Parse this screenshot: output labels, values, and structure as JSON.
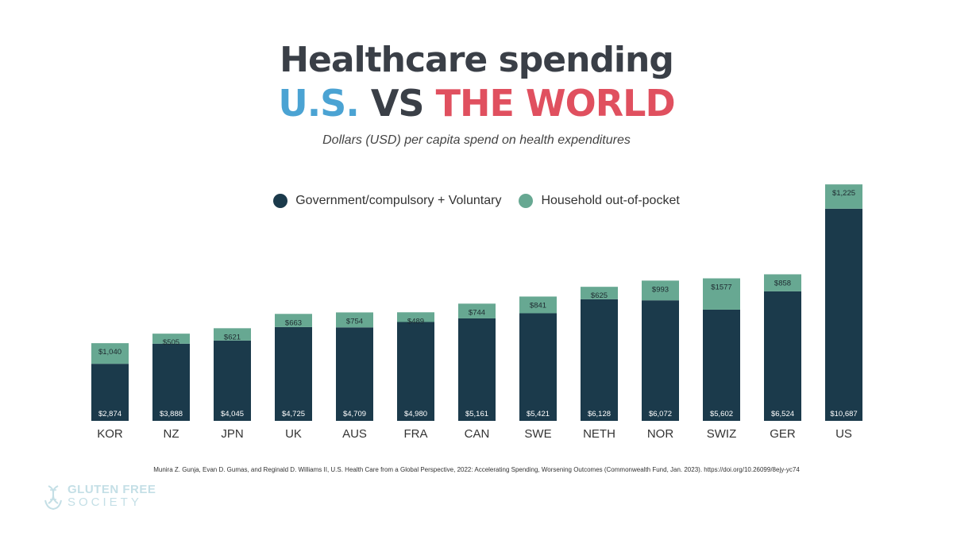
{
  "header": {
    "title_line1": "Healthcare spending",
    "title_us": "U.S.",
    "title_vs": "VS",
    "title_world": "THE WORLD",
    "subtitle": "Dollars (USD) per capita spend on health expenditures"
  },
  "legend": {
    "items": [
      {
        "label": "Government/compulsory + Voluntary",
        "color": "#1b3a4b"
      },
      {
        "label": "Household out-of-pocket",
        "color": "#67a892"
      }
    ]
  },
  "colors": {
    "title_dark": "#3a3f47",
    "us_blue": "#4ba3d3",
    "world_red": "#e0505f",
    "bar_dark": "#1b3a4b",
    "bar_green": "#67a892"
  },
  "chart_data": {
    "type": "bar",
    "stacked": true,
    "categories": [
      "KOR",
      "NZ",
      "JPN",
      "UK",
      "AUS",
      "FRA",
      "CAN",
      "SWE",
      "NETH",
      "NOR",
      "SWIZ",
      "GER",
      "US"
    ],
    "series": [
      {
        "name": "Government/compulsory + Voluntary",
        "values": [
          2874,
          3888,
          4045,
          4725,
          4709,
          4980,
          5161,
          5421,
          6128,
          6072,
          5602,
          6524,
          10687
        ],
        "labels": [
          "$2,874",
          "$3,888",
          "$4,045",
          "$4,725",
          "$4,709",
          "$4,980",
          "$5,161",
          "$5,421",
          "$6,128",
          "$6,072",
          "$5,602",
          "$6,524",
          "$10,687"
        ]
      },
      {
        "name": "Household out-of-pocket",
        "values": [
          1040,
          505,
          621,
          663,
          754,
          489,
          744,
          841,
          625,
          993,
          1577,
          858,
          1225
        ],
        "labels": [
          "$1,040",
          "$505",
          "$621",
          "$663",
          "$754",
          "$489",
          "$744",
          "$841",
          "$625",
          "$993",
          "$1577",
          "$858",
          "$1,225"
        ]
      }
    ],
    "ylim": [
      0,
      12000
    ],
    "grid": false,
    "legend_position": "top-center"
  },
  "source": "Munira Z. Gunja, Evan D. Gumas, and Reginald D. Williams II, U.S. Health Care from a Global Perspective, 2022: Accelerating Spending, Worsening Outcomes (Commonwealth Fund, Jan. 2023). https://doi.org/10.26099/8ejy-yc74",
  "logo": {
    "line1": "GLUTEN FREE",
    "line2": "SOCIETY",
    "icon": "dna-hand-icon"
  }
}
